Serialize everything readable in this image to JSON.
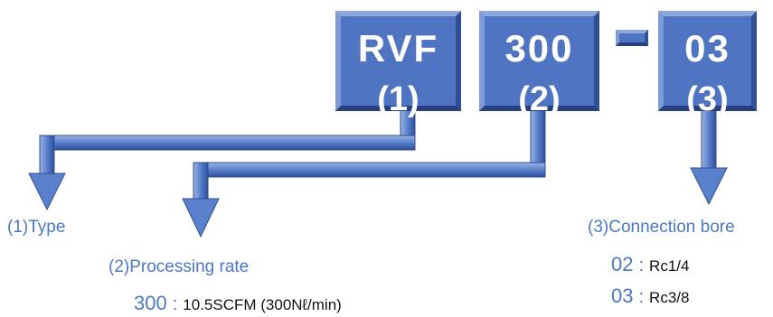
{
  "boxes": [
    {
      "code": "RVF",
      "index": "(1)"
    },
    {
      "code": "300",
      "index": "(2)"
    },
    {
      "code": "03",
      "index": "(3)"
    }
  ],
  "labels": {
    "type": "(1)Type",
    "processing_rate": "(2)Processing rate",
    "connection_bore": "(3)Connection bore"
  },
  "processing_rate_options": [
    {
      "code": "300",
      "separator": ":",
      "value": "10.5SCFM (300Nℓ/min)"
    }
  ],
  "connection_bore_options": [
    {
      "code": "02",
      "separator": ":",
      "value": "Rc1/4"
    },
    {
      "code": "03",
      "separator": ":",
      "value": "Rc3/8"
    }
  ],
  "colors": {
    "box_fill": "#4f74c2",
    "arrow_fill": "#5a80cc",
    "label_text": "#4a78c8"
  }
}
